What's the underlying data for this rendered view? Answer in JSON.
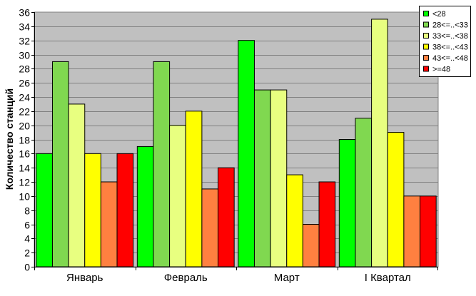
{
  "chart_data": {
    "type": "bar",
    "title": "",
    "xlabel": "",
    "ylabel": "Количество станций",
    "ylim": [
      0,
      36
    ],
    "ytick_step": 2,
    "grid": true,
    "legend_position": "top-right",
    "plot_background": "#c0c0c0",
    "categories": [
      "Январь",
      "Февраль",
      "Март",
      "I Квартал"
    ],
    "series": [
      {
        "name": "<28",
        "color": "#00ff00",
        "values": [
          16,
          17,
          32,
          18
        ]
      },
      {
        "name": "28<=..<33",
        "color": "#80d850",
        "values": [
          29,
          29,
          25,
          21
        ]
      },
      {
        "name": "33<=..<38",
        "color": "#e8ff80",
        "values": [
          23,
          20,
          25,
          35
        ]
      },
      {
        "name": "38<=..<43",
        "color": "#ffff00",
        "values": [
          16,
          22,
          13,
          19
        ]
      },
      {
        "name": "43<=..<48",
        "color": "#ff8040",
        "values": [
          12,
          11,
          6,
          10
        ]
      },
      {
        "name": ">=48",
        "color": "#ff0000",
        "values": [
          16,
          14,
          12,
          10
        ]
      }
    ]
  }
}
